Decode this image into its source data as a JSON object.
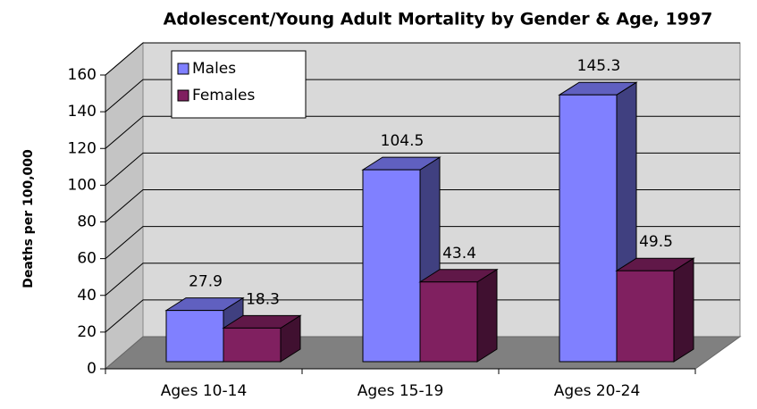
{
  "chart_data": {
    "type": "bar3d",
    "title": "Adolescent/Young Adult Mortality by Gender & Age, 1997",
    "y_label": "Deaths per 100,000",
    "categories": [
      "Ages 10-14",
      "Ages 15-19",
      "Ages 20-24"
    ],
    "series": [
      {
        "name": "Males",
        "color": "#8080ff",
        "values": [
          27.9,
          104.5,
          145.3
        ]
      },
      {
        "name": "Females",
        "color": "#802060",
        "values": [
          18.3,
          43.4,
          49.5
        ]
      }
    ],
    "ylim": [
      0,
      160
    ],
    "yticks": [
      0,
      20,
      40,
      60,
      80,
      100,
      120,
      140,
      160
    ],
    "grid": true,
    "legend": "upper left"
  }
}
